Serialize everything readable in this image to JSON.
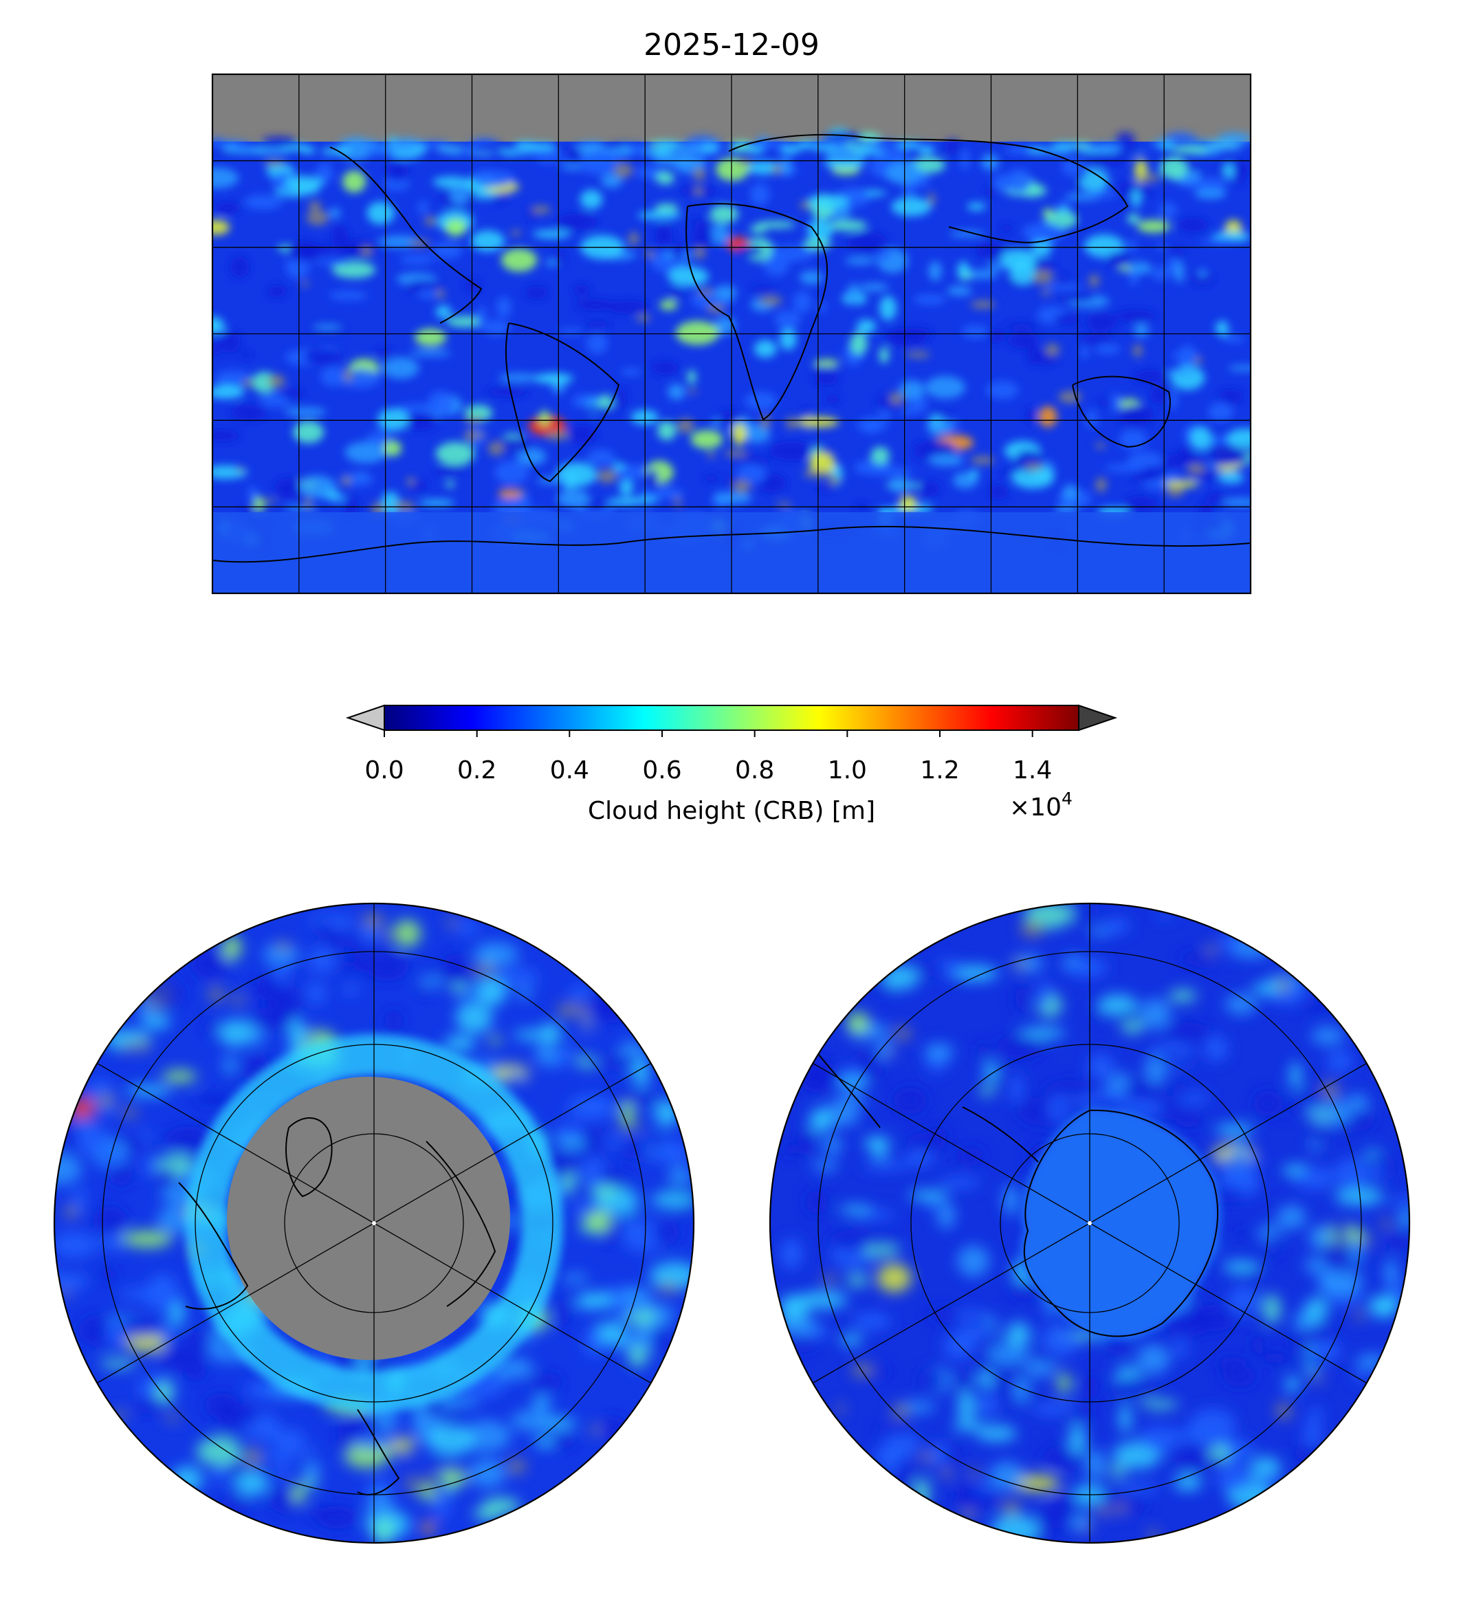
{
  "figure": {
    "title": "2025-12-09"
  },
  "colorbar": {
    "label": "Cloud height (CRB) [m]",
    "tick_labels": [
      "0.0",
      "0.2",
      "0.4",
      "0.6",
      "0.8",
      "1.0",
      "1.2",
      "1.4"
    ],
    "tick_values": [
      0.0,
      0.2,
      0.4,
      0.6,
      0.8,
      1.0,
      1.2,
      1.4
    ],
    "range": [
      0.0,
      1.5
    ],
    "multiplier_base": "×10",
    "multiplier_exp": "4",
    "colormap": "jet",
    "under_color": "#c8c8c8",
    "over_color": "#404040",
    "extend": "both"
  },
  "maps": {
    "global": {
      "projection": "equirectangular",
      "lon_range": [
        -180,
        180
      ],
      "lat_range": [
        -90,
        90
      ],
      "gridline_spacing_deg": 30,
      "missing_color": "#808080"
    },
    "north_polar": {
      "projection": "north polar stereographic",
      "missing_color": "#808080"
    },
    "south_polar": {
      "projection": "south polar stereographic",
      "missing_color": "#808080"
    }
  },
  "colors": {
    "jet_stops": [
      "#00007f",
      "#0000ff",
      "#007fff",
      "#00ffff",
      "#7fff7f",
      "#ffff00",
      "#ff7f00",
      "#ff0000",
      "#7f0000"
    ],
    "cloud_blue": "#1a3cff",
    "missing_gray": "#808080",
    "coastline": "#000000"
  }
}
